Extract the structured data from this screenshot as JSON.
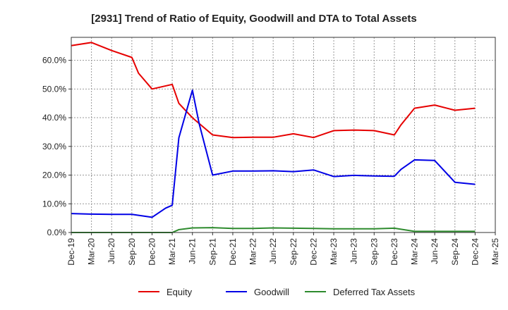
{
  "chart_data": {
    "type": "line",
    "title": "[2931]  Trend of Ratio of Equity, Goodwill and DTA to Total Assets",
    "xlabel": "",
    "ylabel": "",
    "x_ticks": [
      "Dec-19",
      "Mar-20",
      "Jun-20",
      "Sep-20",
      "Dec-20",
      "Mar-21",
      "Jun-21",
      "Sep-21",
      "Dec-21",
      "Mar-22",
      "Jun-22",
      "Sep-22",
      "Dec-22",
      "Mar-23",
      "Jun-23",
      "Sep-23",
      "Dec-23",
      "Mar-24",
      "Jun-24",
      "Sep-24",
      "Dec-24",
      "Mar-25"
    ],
    "y_ticks": [
      "0.0%",
      "10.0%",
      "20.0%",
      "30.0%",
      "40.0%",
      "50.0%",
      "60.0%"
    ],
    "ylim": [
      0,
      68
    ],
    "grid": true,
    "legend_position": "bottom",
    "series": [
      {
        "name": "Equity",
        "color": "#e60000",
        "points": [
          [
            0,
            65.1
          ],
          [
            1,
            66.2
          ],
          [
            2,
            63.4
          ],
          [
            3,
            61.0
          ],
          [
            3.33,
            55.5
          ],
          [
            4,
            50.0
          ],
          [
            5,
            51.6
          ],
          [
            5.33,
            45.0
          ],
          [
            6,
            40.0
          ],
          [
            7,
            34.0
          ],
          [
            8,
            33.1
          ],
          [
            9,
            33.2
          ],
          [
            10,
            33.2
          ],
          [
            11,
            34.4
          ],
          [
            12,
            33.1
          ],
          [
            13,
            35.5
          ],
          [
            14,
            35.7
          ],
          [
            15,
            35.5
          ],
          [
            16,
            34.0
          ],
          [
            16.33,
            37.5
          ],
          [
            17,
            43.3
          ],
          [
            18,
            44.4
          ],
          [
            19,
            42.6
          ],
          [
            20,
            43.3
          ]
        ]
      },
      {
        "name": "Goodwill",
        "color": "#0000e6",
        "points": [
          [
            0,
            6.6
          ],
          [
            1,
            6.4
          ],
          [
            2,
            6.3
          ],
          [
            3,
            6.3
          ],
          [
            4,
            5.3
          ],
          [
            4.67,
            8.5
          ],
          [
            5,
            9.5
          ],
          [
            5.33,
            33.0
          ],
          [
            6,
            49.6
          ],
          [
            6.33,
            38.0
          ],
          [
            7,
            20.0
          ],
          [
            8,
            21.4
          ],
          [
            9,
            21.4
          ],
          [
            10,
            21.5
          ],
          [
            11,
            21.2
          ],
          [
            12,
            21.8
          ],
          [
            13,
            19.5
          ],
          [
            14,
            19.9
          ],
          [
            15,
            19.7
          ],
          [
            16,
            19.6
          ],
          [
            16.33,
            22.0
          ],
          [
            17,
            25.3
          ],
          [
            18,
            25.1
          ],
          [
            19,
            17.5
          ],
          [
            20,
            16.8
          ]
        ]
      },
      {
        "name": "Deferred Tax Assets",
        "color": "#2e8b2e",
        "points": [
          [
            0,
            0.0
          ],
          [
            1,
            0.0
          ],
          [
            2,
            0.0
          ],
          [
            3,
            0.0
          ],
          [
            4,
            0.0
          ],
          [
            5,
            0.0
          ],
          [
            5.33,
            1.0
          ],
          [
            6,
            1.6
          ],
          [
            7,
            1.7
          ],
          [
            8,
            1.4
          ],
          [
            9,
            1.4
          ],
          [
            10,
            1.6
          ],
          [
            11,
            1.5
          ],
          [
            12,
            1.4
          ],
          [
            13,
            1.3
          ],
          [
            14,
            1.3
          ],
          [
            15,
            1.3
          ],
          [
            16,
            1.5
          ],
          [
            17,
            0.4
          ],
          [
            18,
            0.4
          ],
          [
            19,
            0.4
          ],
          [
            20,
            0.4
          ]
        ]
      }
    ]
  }
}
